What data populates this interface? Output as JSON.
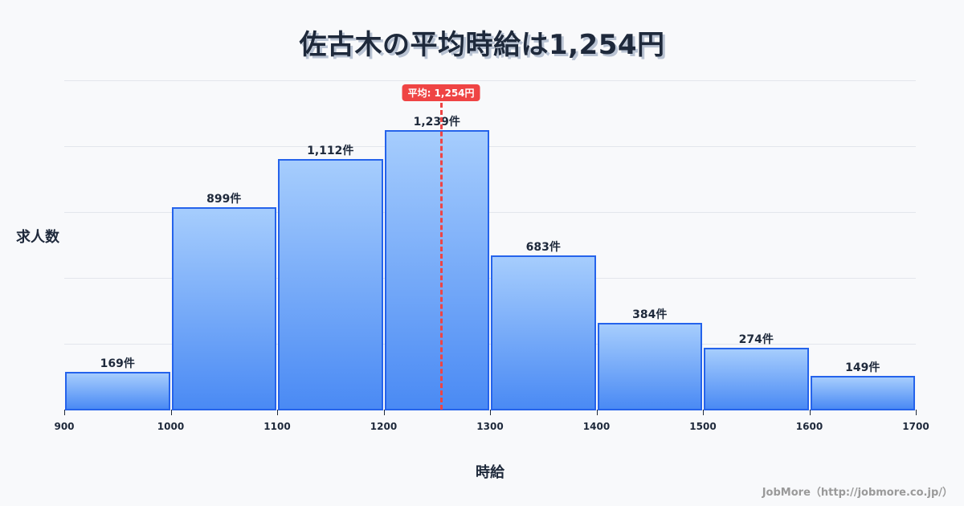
{
  "title": "佐古木の平均時給は1,254円",
  "axes": {
    "ylabel": "求人数",
    "xlabel": "時給"
  },
  "mean": {
    "label": "平均: 1,254円",
    "value": 1254,
    "color": "#ef4444"
  },
  "footer": "JobMore（http://jobmore.co.jp/）",
  "chart_data": {
    "type": "bar",
    "title": "佐古木の平均時給は1,254円",
    "xlabel": "時給",
    "ylabel": "求人数",
    "bins": [
      [
        900,
        1000
      ],
      [
        1000,
        1100
      ],
      [
        1100,
        1200
      ],
      [
        1200,
        1300
      ],
      [
        1300,
        1400
      ],
      [
        1400,
        1500
      ],
      [
        1500,
        1600
      ],
      [
        1600,
        1700
      ]
    ],
    "categories": [
      "900-1000",
      "1000-1100",
      "1100-1200",
      "1200-1300",
      "1300-1400",
      "1400-1500",
      "1500-1600",
      "1600-1700"
    ],
    "values": [
      169,
      899,
      1112,
      1239,
      683,
      384,
      274,
      149
    ],
    "value_labels": [
      "169件",
      "899件",
      "1,112件",
      "1,239件",
      "683件",
      "384件",
      "274件",
      "149件"
    ],
    "x_ticks": [
      "900",
      "1000",
      "1100",
      "1200",
      "1300",
      "1400",
      "1500",
      "1600",
      "1700"
    ],
    "xlim": [
      900,
      1700
    ],
    "ylim": [
      0,
      1460
    ],
    "grid": true,
    "annotations": [
      {
        "type": "vline",
        "x": 1254,
        "label": "平均: 1,254円",
        "style": "dashed",
        "color": "#ef4444"
      }
    ],
    "bar_color": "#4a8af4",
    "bar_edge_color": "#2563eb"
  }
}
